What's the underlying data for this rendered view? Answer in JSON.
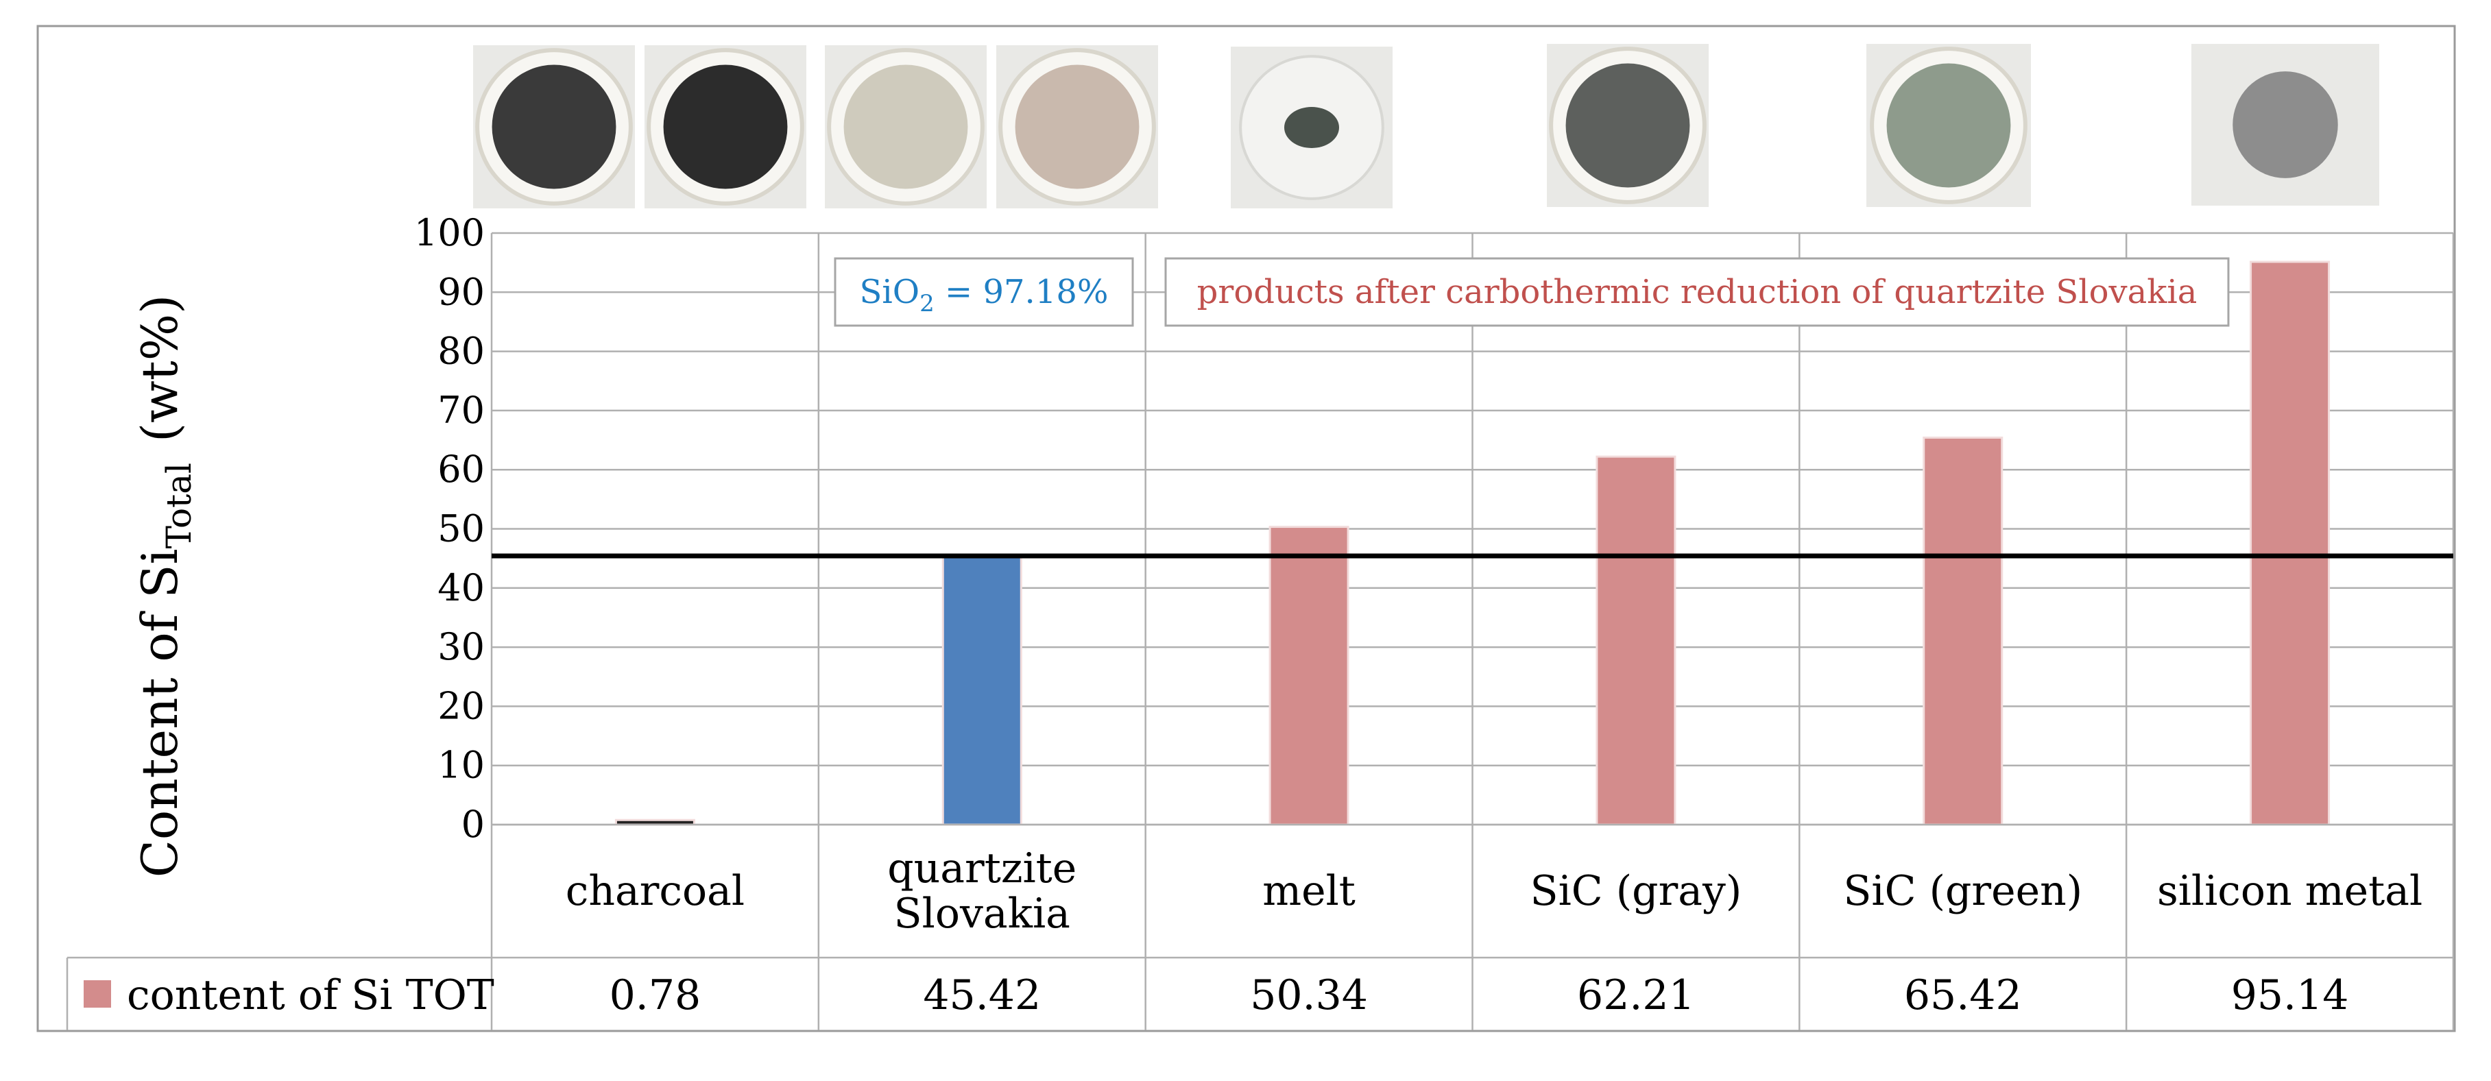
{
  "chart_data": {
    "type": "bar",
    "categories": [
      "charcoal",
      "quartzite Slovakia",
      "melt",
      "SiC (gray)",
      "SiC (green)",
      "silicon metal"
    ],
    "category_lines": [
      [
        "charcoal"
      ],
      [
        "quartzite",
        "Slovakia"
      ],
      [
        "melt"
      ],
      [
        "SiC (gray)"
      ],
      [
        "SiC (green)"
      ],
      [
        "silicon metal"
      ]
    ],
    "series": [
      {
        "name": "content of Si TOT",
        "values": [
          0.78,
          45.42,
          50.34,
          62.21,
          65.42,
          95.14
        ],
        "value_labels": [
          "0.78",
          "45.42",
          "50.34",
          "62.21",
          "65.42",
          "95.14"
        ],
        "color": "#d38c8c",
        "highlight_index": 1,
        "highlight_color": "#4f81bd",
        "minor_color": "#222222"
      }
    ],
    "ylabel": "Content of Si",
    "ylabel_sub": "Total",
    "ylabel_unit": "(wt%)",
    "ylim": [
      0,
      100
    ],
    "ytick_values": [
      0,
      10,
      20,
      30,
      40,
      50,
      60,
      70,
      80,
      90,
      100
    ],
    "ytick_labels": [
      "0",
      "10",
      "20",
      "30",
      "40",
      "50",
      "60",
      "70",
      "80",
      "90",
      "100"
    ],
    "reference_line": {
      "value": 45.42,
      "color": "#000000"
    },
    "grid": true,
    "legend_position": "bottom-left (data table)",
    "annotations": {
      "sio2": {
        "prefix": "SiO",
        "subscript": "2",
        "suffix": " = 97.18%",
        "color": "#1f7fc4"
      },
      "products": {
        "text": "products after carbothermic reduction of quartzite Slovakia",
        "color": "#c0504d"
      }
    },
    "sample_photos": [
      {
        "name": "charcoal-powder-photo",
        "color": "#3a3a3a"
      },
      {
        "name": "charcoal-lumps-photo",
        "color": "#2c2c2c"
      },
      {
        "name": "quartzite-powder-photo",
        "color": "#cfcbbd"
      },
      {
        "name": "quartzite-grains-photo",
        "color": "#c9b9ad"
      },
      {
        "name": "melt-photo",
        "color": "#4a524c"
      },
      {
        "name": "sic-gray-photo",
        "color": "#5d605d"
      },
      {
        "name": "sic-green-photo",
        "color": "#8e9b8c"
      },
      {
        "name": "silicon-metal-photo",
        "color": "#8d8d8d"
      }
    ]
  }
}
